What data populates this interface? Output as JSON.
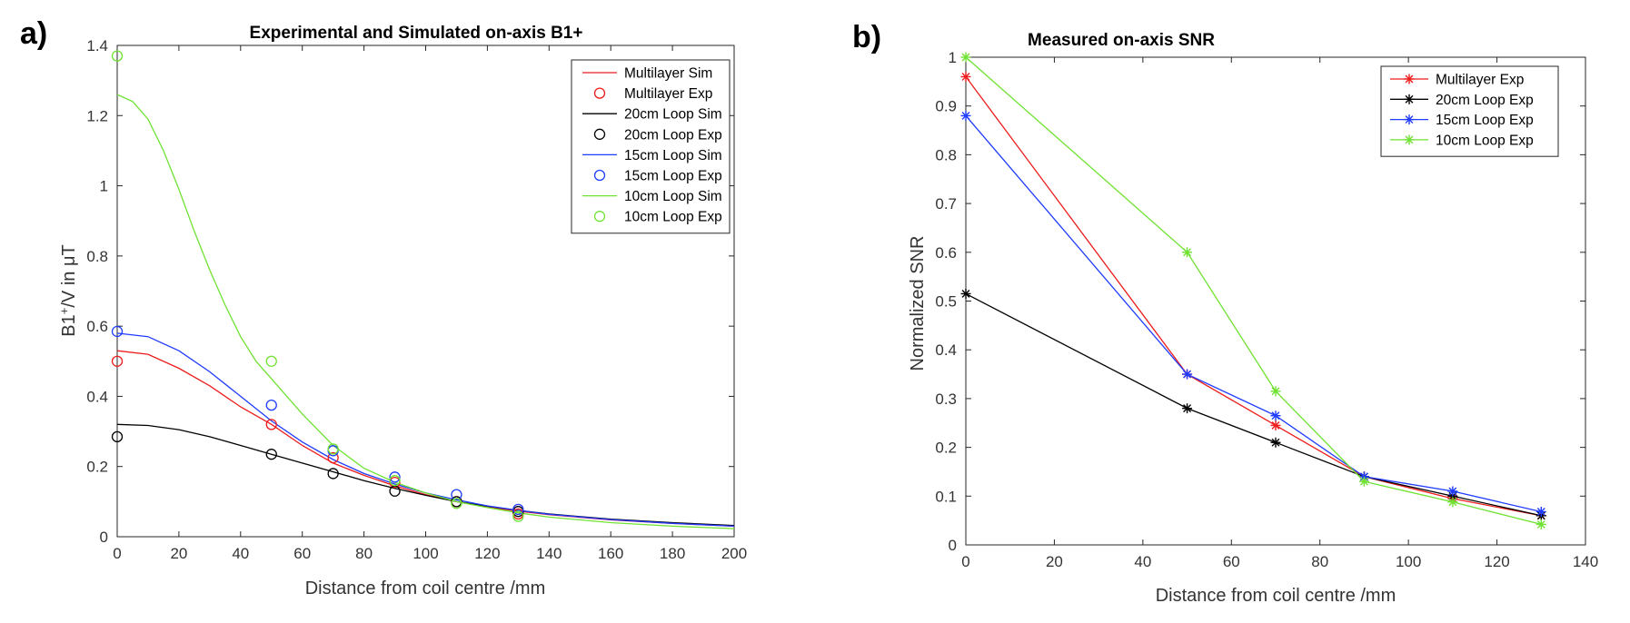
{
  "panels": {
    "a": {
      "label": "a)"
    },
    "b": {
      "label": "b)"
    }
  },
  "colors": {
    "Multilayer": "#ee1c1c",
    "20cm Loop": "#000000",
    "15cm Loop": "#1f3cff",
    "10cm Loop": "#6fe232"
  },
  "chart_data": [
    {
      "id": "a",
      "type": "line+scatter",
      "title": "Experimental and Simulated on-axis B1+",
      "xlabel": "Distance from coil centre /mm",
      "ylabel_main": "B1",
      "ylabel_sup": "+",
      "ylabel_rest": "/V in μT",
      "xlim": [
        0,
        200
      ],
      "ylim": [
        0,
        1.4
      ],
      "xticks": [
        0,
        20,
        40,
        60,
        80,
        100,
        120,
        140,
        160,
        180,
        200
      ],
      "yticks": [
        0,
        0.2,
        0.4,
        0.6,
        0.8,
        1,
        1.2,
        1.4
      ],
      "legend_position": "top-right",
      "legend": [
        "Multilayer Sim",
        "Multilayer Exp",
        "20cm Loop Sim",
        "20cm Loop Exp",
        "15cm Loop Sim",
        "15cm Loop Exp",
        "10cm Loop Sim",
        "10cm Loop Exp"
      ],
      "sim_series": [
        {
          "name": "Multilayer Sim",
          "color_key": "Multilayer",
          "x": [
            0,
            10,
            20,
            30,
            40,
            50,
            60,
            70,
            80,
            90,
            100,
            110,
            120,
            130,
            140,
            160,
            180,
            200
          ],
          "y": [
            0.53,
            0.52,
            0.48,
            0.43,
            0.37,
            0.32,
            0.26,
            0.21,
            0.175,
            0.145,
            0.12,
            0.1,
            0.085,
            0.073,
            0.063,
            0.048,
            0.038,
            0.03
          ]
        },
        {
          "name": "20cm Loop Sim",
          "color_key": "20cm Loop",
          "x": [
            0,
            10,
            20,
            30,
            40,
            50,
            60,
            70,
            80,
            90,
            100,
            110,
            120,
            130,
            140,
            160,
            180,
            200
          ],
          "y": [
            0.32,
            0.317,
            0.305,
            0.285,
            0.26,
            0.235,
            0.21,
            0.185,
            0.16,
            0.138,
            0.118,
            0.1,
            0.087,
            0.075,
            0.065,
            0.05,
            0.04,
            0.032
          ]
        },
        {
          "name": "15cm Loop Sim",
          "color_key": "15cm Loop",
          "x": [
            0,
            10,
            20,
            30,
            40,
            50,
            60,
            70,
            80,
            90,
            100,
            110,
            120,
            130,
            140,
            160,
            180,
            200
          ],
          "y": [
            0.58,
            0.57,
            0.53,
            0.47,
            0.4,
            0.33,
            0.27,
            0.22,
            0.18,
            0.15,
            0.125,
            0.105,
            0.088,
            0.075,
            0.064,
            0.049,
            0.038,
            0.03
          ]
        },
        {
          "name": "10cm Loop Sim",
          "color_key": "10cm Loop",
          "x": [
            0,
            5,
            10,
            15,
            20,
            25,
            30,
            35,
            40,
            45,
            50,
            55,
            60,
            70,
            80,
            90,
            100,
            110,
            120,
            130,
            140,
            160,
            180,
            200
          ],
          "y": [
            1.26,
            1.24,
            1.19,
            1.1,
            0.99,
            0.87,
            0.76,
            0.66,
            0.57,
            0.5,
            0.45,
            0.4,
            0.35,
            0.26,
            0.195,
            0.155,
            0.125,
            0.1,
            0.083,
            0.068,
            0.056,
            0.04,
            0.03,
            0.023
          ]
        }
      ],
      "exp_series": [
        {
          "name": "Multilayer Exp",
          "color_key": "Multilayer",
          "x": [
            0,
            50,
            70,
            90,
            110,
            130
          ],
          "y": [
            0.5,
            0.32,
            0.225,
            0.155,
            0.1,
            0.065
          ]
        },
        {
          "name": "20cm Loop Exp",
          "color_key": "20cm Loop",
          "x": [
            0,
            50,
            70,
            90,
            110,
            130
          ],
          "y": [
            0.285,
            0.235,
            0.18,
            0.13,
            0.1,
            0.072
          ]
        },
        {
          "name": "15cm Loop Exp",
          "color_key": "15cm Loop",
          "x": [
            0,
            50,
            70,
            90,
            110,
            130
          ],
          "y": [
            0.585,
            0.375,
            0.245,
            0.17,
            0.12,
            0.078
          ]
        },
        {
          "name": "10cm Loop Exp",
          "color_key": "10cm Loop",
          "x": [
            0,
            50,
            70,
            90,
            110,
            130
          ],
          "y": [
            1.37,
            0.5,
            0.25,
            0.16,
            0.095,
            0.058
          ]
        }
      ]
    },
    {
      "id": "b",
      "type": "line",
      "title": "Measured on-axis SNR",
      "xlabel": "Distance from coil centre /mm",
      "ylabel": "Normalized SNR",
      "xlim": [
        0,
        140
      ],
      "ylim": [
        0,
        1
      ],
      "xticks": [
        0,
        20,
        40,
        60,
        80,
        100,
        120,
        140
      ],
      "yticks": [
        0,
        0.1,
        0.2,
        0.3,
        0.4,
        0.5,
        0.6,
        0.7,
        0.8,
        0.9,
        1
      ],
      "legend_position": "top-right",
      "legend": [
        "Multilayer Exp",
        "20cm Loop Exp",
        "15cm Loop Exp",
        "10cm Loop Exp"
      ],
      "marker": "asterisk",
      "x": [
        0,
        50,
        70,
        90,
        110,
        130
      ],
      "series": [
        {
          "name": "Multilayer Exp",
          "color_key": "Multilayer",
          "values": [
            0.96,
            0.35,
            0.245,
            0.14,
            0.095,
            0.06
          ]
        },
        {
          "name": "20cm Loop Exp",
          "color_key": "20cm Loop",
          "values": [
            0.515,
            0.28,
            0.21,
            0.14,
            0.1,
            0.06
          ]
        },
        {
          "name": "15cm Loop Exp",
          "color_key": "15cm Loop",
          "values": [
            0.88,
            0.35,
            0.265,
            0.14,
            0.11,
            0.068
          ]
        },
        {
          "name": "10cm Loop Exp",
          "color_key": "10cm Loop",
          "values": [
            1.0,
            0.6,
            0.315,
            0.13,
            0.088,
            0.042
          ]
        }
      ]
    }
  ]
}
